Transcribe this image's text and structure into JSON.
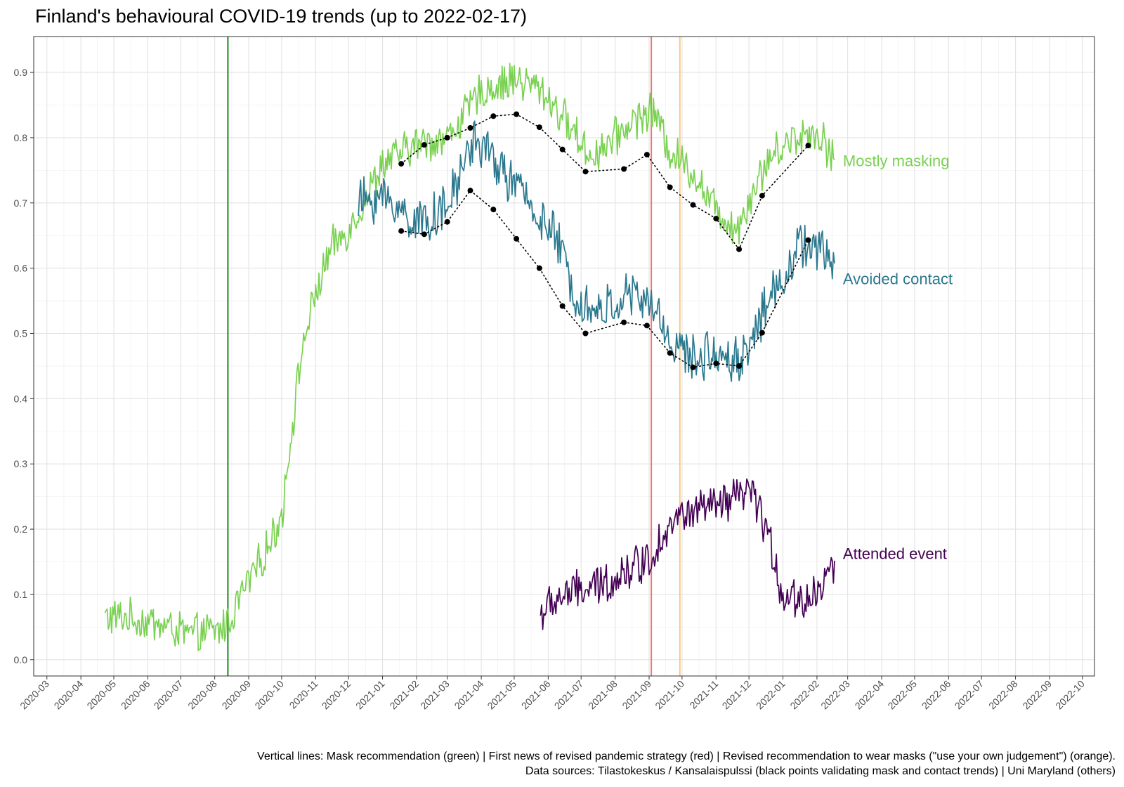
{
  "chart_data": {
    "type": "line",
    "title": "Finland's behavioural COVID-19 trends (up to 2022-02-17)",
    "xlabel": "",
    "ylabel": "",
    "ylim": [
      -0.025,
      0.955
    ],
    "xlim": [
      "2020-02-18",
      "2022-10-12"
    ],
    "grid": true,
    "y_ticks": [
      0.0,
      0.1,
      0.2,
      0.3,
      0.4,
      0.5,
      0.6,
      0.7,
      0.8,
      0.9
    ],
    "y_tick_labels": [
      "0.0",
      "0.1",
      "0.2",
      "0.3",
      "0.4",
      "0.5",
      "0.6",
      "0.7",
      "0.8",
      "0.9"
    ],
    "x_tick_labels": [
      "2020-03",
      "2020-04",
      "2020-05",
      "2020-06",
      "2020-07",
      "2020-08",
      "2020-09",
      "2020-10",
      "2020-11",
      "2020-12",
      "2021-01",
      "2021-02",
      "2021-03",
      "2021-04",
      "2021-05",
      "2021-06",
      "2021-07",
      "2021-08",
      "2021-09",
      "2021-10",
      "2021-11",
      "2021-12",
      "2022-01",
      "2022-02",
      "2022-03",
      "2022-04",
      "2022-05",
      "2022-06",
      "2022-07",
      "2022-08",
      "2022-09",
      "2022-10"
    ],
    "series": [
      {
        "name": "Mostly masking",
        "label": "Mostly masking",
        "color": "#7AD151",
        "noise": 0.026,
        "keys": [
          [
            "2020-04-23",
            0.065
          ],
          [
            "2020-05-10",
            0.065
          ],
          [
            "2020-06-10",
            0.055
          ],
          [
            "2020-07-10",
            0.038
          ],
          [
            "2020-08-05",
            0.045
          ],
          [
            "2020-08-15",
            0.06
          ],
          [
            "2020-08-25",
            0.1
          ],
          [
            "2020-09-15",
            0.16
          ],
          [
            "2020-10-01",
            0.22
          ],
          [
            "2020-10-10",
            0.35
          ],
          [
            "2020-10-20",
            0.48
          ],
          [
            "2020-11-01",
            0.56
          ],
          [
            "2020-11-15",
            0.63
          ],
          [
            "2020-12-01",
            0.66
          ],
          [
            "2020-12-15",
            0.7
          ],
          [
            "2021-01-01",
            0.76
          ],
          [
            "2021-02-01",
            0.79
          ],
          [
            "2021-03-01",
            0.8
          ],
          [
            "2021-04-01",
            0.87
          ],
          [
            "2021-05-01",
            0.89
          ],
          [
            "2021-05-25",
            0.875
          ],
          [
            "2021-06-20",
            0.82
          ],
          [
            "2021-07-10",
            0.77
          ],
          [
            "2021-08-01",
            0.8
          ],
          [
            "2021-08-20",
            0.83
          ],
          [
            "2021-09-05",
            0.84
          ],
          [
            "2021-09-20",
            0.78
          ],
          [
            "2021-10-10",
            0.75
          ],
          [
            "2021-11-01",
            0.69
          ],
          [
            "2021-11-20",
            0.66
          ],
          [
            "2021-12-05",
            0.72
          ],
          [
            "2021-12-20",
            0.77
          ],
          [
            "2022-01-10",
            0.8
          ],
          [
            "2022-02-01",
            0.81
          ],
          [
            "2022-02-17",
            0.77
          ]
        ]
      },
      {
        "name": "Avoided contact",
        "label": "Avoided contact",
        "color": "#2A788E",
        "noise": 0.032,
        "keys": [
          [
            "2020-12-10",
            0.7
          ],
          [
            "2021-01-01",
            0.71
          ],
          [
            "2021-02-01",
            0.67
          ],
          [
            "2021-03-01",
            0.69
          ],
          [
            "2021-03-25",
            0.8
          ],
          [
            "2021-04-15",
            0.76
          ],
          [
            "2021-05-15",
            0.7
          ],
          [
            "2021-06-10",
            0.64
          ],
          [
            "2021-06-25",
            0.56
          ],
          [
            "2021-07-15",
            0.53
          ],
          [
            "2021-08-15",
            0.56
          ],
          [
            "2021-09-05",
            0.54
          ],
          [
            "2021-09-20",
            0.49
          ],
          [
            "2021-10-10",
            0.46
          ],
          [
            "2021-11-01",
            0.47
          ],
          [
            "2021-11-25",
            0.46
          ],
          [
            "2021-12-10",
            0.52
          ],
          [
            "2022-01-01",
            0.59
          ],
          [
            "2022-01-20",
            0.64
          ],
          [
            "2022-02-17",
            0.61
          ]
        ]
      },
      {
        "name": "Attended event",
        "label": "Attended event",
        "color": "#440154",
        "noise": 0.028,
        "keys": [
          [
            "2021-05-25",
            0.07
          ],
          [
            "2021-06-15",
            0.1
          ],
          [
            "2021-07-15",
            0.11
          ],
          [
            "2021-08-15",
            0.14
          ],
          [
            "2021-09-05",
            0.16
          ],
          [
            "2021-09-15",
            0.2
          ],
          [
            "2021-10-01",
            0.22
          ],
          [
            "2021-10-20",
            0.23
          ],
          [
            "2021-11-15",
            0.24
          ],
          [
            "2021-12-01",
            0.26
          ],
          [
            "2021-12-15",
            0.21
          ],
          [
            "2022-01-01",
            0.1
          ],
          [
            "2022-01-20",
            0.09
          ],
          [
            "2022-02-05",
            0.11
          ],
          [
            "2022-02-17",
            0.15
          ]
        ]
      }
    ],
    "validation_points": {
      "name": "Tilastokeskus / Kansalaispulssi",
      "color": "#000000",
      "mask": [
        [
          "2021-01-18",
          0.76
        ],
        [
          "2021-02-08",
          0.789
        ],
        [
          "2021-03-01",
          0.8
        ],
        [
          "2021-03-22",
          0.815
        ],
        [
          "2021-04-12",
          0.833
        ],
        [
          "2021-05-03",
          0.836
        ],
        [
          "2021-05-24",
          0.816
        ],
        [
          "2021-06-14",
          0.782
        ],
        [
          "2021-07-05",
          0.748
        ],
        [
          "2021-08-09",
          0.752
        ],
        [
          "2021-08-30",
          0.774
        ],
        [
          "2021-09-20",
          0.724
        ],
        [
          "2021-10-11",
          0.697
        ],
        [
          "2021-11-01",
          0.676
        ],
        [
          "2021-11-22",
          0.629
        ],
        [
          "2021-12-13",
          0.711
        ],
        [
          "2022-01-24",
          0.788
        ]
      ],
      "contact": [
        [
          "2021-01-18",
          0.657
        ],
        [
          "2021-02-08",
          0.652
        ],
        [
          "2021-03-01",
          0.671
        ],
        [
          "2021-03-22",
          0.719
        ],
        [
          "2021-04-12",
          0.69
        ],
        [
          "2021-05-03",
          0.645
        ],
        [
          "2021-05-24",
          0.6
        ],
        [
          "2021-06-14",
          0.542
        ],
        [
          "2021-07-05",
          0.5
        ],
        [
          "2021-08-09",
          0.517
        ],
        [
          "2021-08-30",
          0.512
        ],
        [
          "2021-09-20",
          0.47
        ],
        [
          "2021-10-11",
          0.448
        ],
        [
          "2021-11-01",
          0.454
        ],
        [
          "2021-11-22",
          0.45
        ],
        [
          "2021-12-13",
          0.501
        ],
        [
          "2022-01-24",
          0.643
        ]
      ]
    },
    "vlines": [
      {
        "name": "Mask recommendation",
        "date": "2020-08-13",
        "color": "#1A8A1A"
      },
      {
        "name": "First news of revised pandemic strategy",
        "date": "2021-09-03",
        "color": "#E87A7A"
      },
      {
        "name": "Revised recommendation to wear masks",
        "date": "2021-09-29",
        "color": "#F7C98A"
      }
    ],
    "caption_lines": [
      "Vertical lines: Mask recommendation (green) | First news of revised pandemic strategy (red) | Revised recommendation to wear masks (\"use your own judgement\") (orange).",
      "Data sources: Tilastokeskus / Kansalaispulssi (black points validating mask and contact trends) | Uni Maryland (others)"
    ]
  }
}
